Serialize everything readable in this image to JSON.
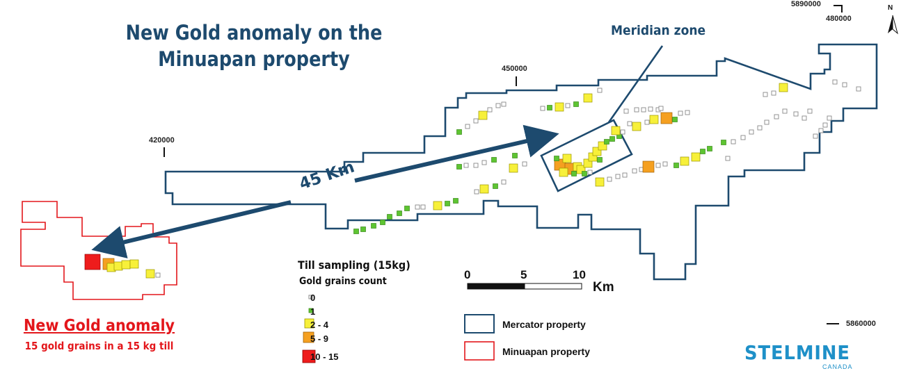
{
  "title": {
    "line1": "New Gold anomaly on the",
    "line2": "Minuapan property"
  },
  "zone_label": "Meridian zone",
  "distance_label": "45 Km",
  "coords": {
    "northing_top": "5890000",
    "easting_top": "480000",
    "easting_mid": "450000",
    "easting_left": "420000",
    "northing_bottom": "5860000"
  },
  "north_arrow": {
    "label": "N",
    "icon": "north-arrow-icon"
  },
  "anomaly": {
    "title": "New Gold anomaly",
    "subtitle": "15 gold grains in a 15 kg till"
  },
  "legend": {
    "title": "Till sampling (15kg)",
    "subtitle": "Gold grains count",
    "classes": [
      {
        "label": "0",
        "color": "#ffffff",
        "stroke": "#888888"
      },
      {
        "label": "1",
        "color": "#5ec432",
        "stroke": "#3a8a1a"
      },
      {
        "label": "2 - 4",
        "color": "#f7f03a",
        "stroke": "#9a9400"
      },
      {
        "label": "5 - 9",
        "color": "#f5a020",
        "stroke": "#a0620a"
      },
      {
        "label": "10 - 15",
        "color": "#ee1c1c",
        "stroke": "#900000"
      }
    ]
  },
  "scale": {
    "ticks": [
      "0",
      "5",
      "10"
    ],
    "unit": "Km"
  },
  "properties": {
    "mercator": {
      "label": "Mercator property",
      "color": "#1d4a6e"
    },
    "minuapan": {
      "label": "Minuapan property",
      "color": "#e3161b"
    }
  },
  "brand": {
    "name": "STELMINE",
    "sub": "CANADA"
  },
  "colors": {
    "title": "#1d4a6e",
    "anomaly": "#e3161b",
    "arrow": "#1d4a6e"
  }
}
